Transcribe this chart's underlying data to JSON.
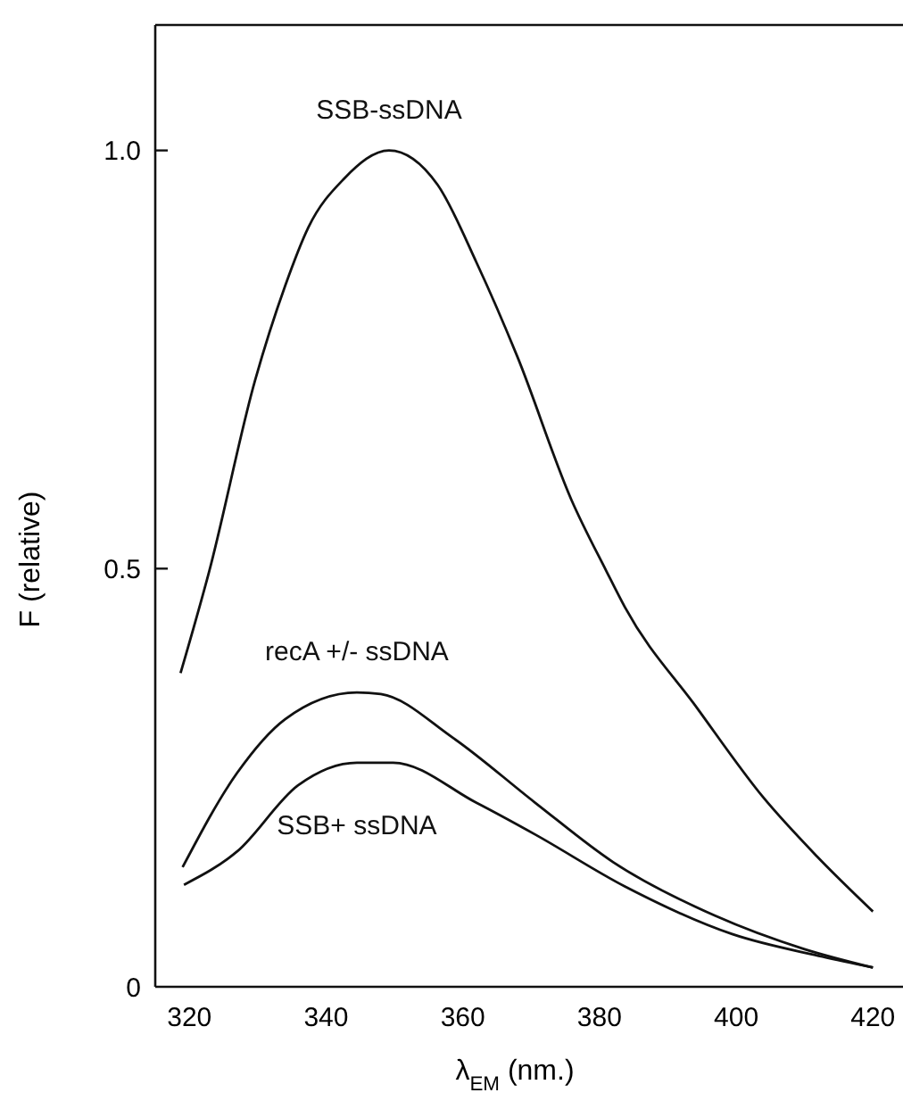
{
  "chart_data": {
    "type": "line",
    "xlabel": "λ$_{EM}$ (nm.)",
    "ylabel": "F (relative)",
    "xlim": [
      315,
      424.4
    ],
    "ylim": [
      0,
      1.15
    ],
    "xticks": [
      320,
      340,
      360,
      380,
      400,
      420
    ],
    "yticks": [
      {
        "value": 0,
        "label": "0"
      },
      0.5,
      {
        "value": 1,
        "label": "1.0"
      }
    ],
    "grid": false,
    "marker": "none",
    "line_style": "solid",
    "series": [
      {
        "name": "SSB-ssDNA",
        "color": "#111111",
        "x": [
          318.7,
          322.9,
          329.6,
          334,
          337.4,
          342.6,
          349.2,
          356.3,
          362,
          368,
          375.9,
          381,
          383.7,
          394.3,
          403.9,
          411.8,
          420
        ],
        "values": [
          0.375,
          0.497,
          0.725,
          0.838,
          0.908,
          0.966,
          1.0,
          0.959,
          0.866,
          0.753,
          0.582,
          0.497,
          0.454,
          0.333,
          0.227,
          0.156,
          0.09
        ]
      },
      {
        "name": "recA +/- ssDNA",
        "color": "#111111",
        "x": [
          319,
          327,
          334,
          344.5,
          348,
          358.5,
          370.6,
          382,
          396.9,
          410,
          420
        ],
        "values": [
          0.143,
          0.256,
          0.32,
          0.352,
          0.35,
          0.298,
          0.22,
          0.149,
          0.085,
          0.045,
          0.023
        ]
      },
      {
        "name": "SSB+ ssDNA",
        "color": "#111111",
        "x": [
          319.2,
          327,
          335.9,
          344.5,
          349.8,
          362,
          370.6,
          383.7,
          399.4,
          412.6,
          420
        ],
        "values": [
          0.122,
          0.162,
          0.241,
          0.268,
          0.268,
          0.22,
          0.182,
          0.12,
          0.063,
          0.036,
          0.023
        ]
      }
    ]
  }
}
